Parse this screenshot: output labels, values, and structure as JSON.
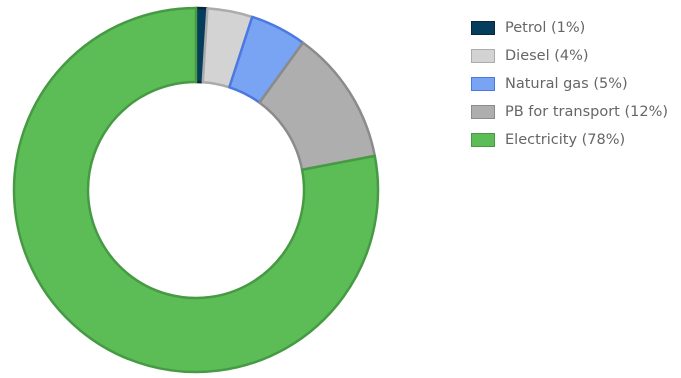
{
  "chart_data": {
    "type": "pie",
    "donut": true,
    "legend_position": "right",
    "slices": [
      {
        "label": "Petrol (1%)",
        "value": 1,
        "fill": "#053d5c",
        "stroke": "#0b2536"
      },
      {
        "label": "Diesel (4%)",
        "value": 4,
        "fill": "#d3d3d3",
        "stroke": "#ababab"
      },
      {
        "label": "Natural gas (5%)",
        "value": 5,
        "fill": "#78a4f3",
        "stroke": "#4c79e1"
      },
      {
        "label": "PB for transport (12%)",
        "value": 12,
        "fill": "#aeaeae",
        "stroke": "#8b8b8b"
      },
      {
        "label": "Electricity (78%)",
        "value": 78,
        "fill": "#5cbd56",
        "stroke": "#469a43"
      }
    ]
  }
}
